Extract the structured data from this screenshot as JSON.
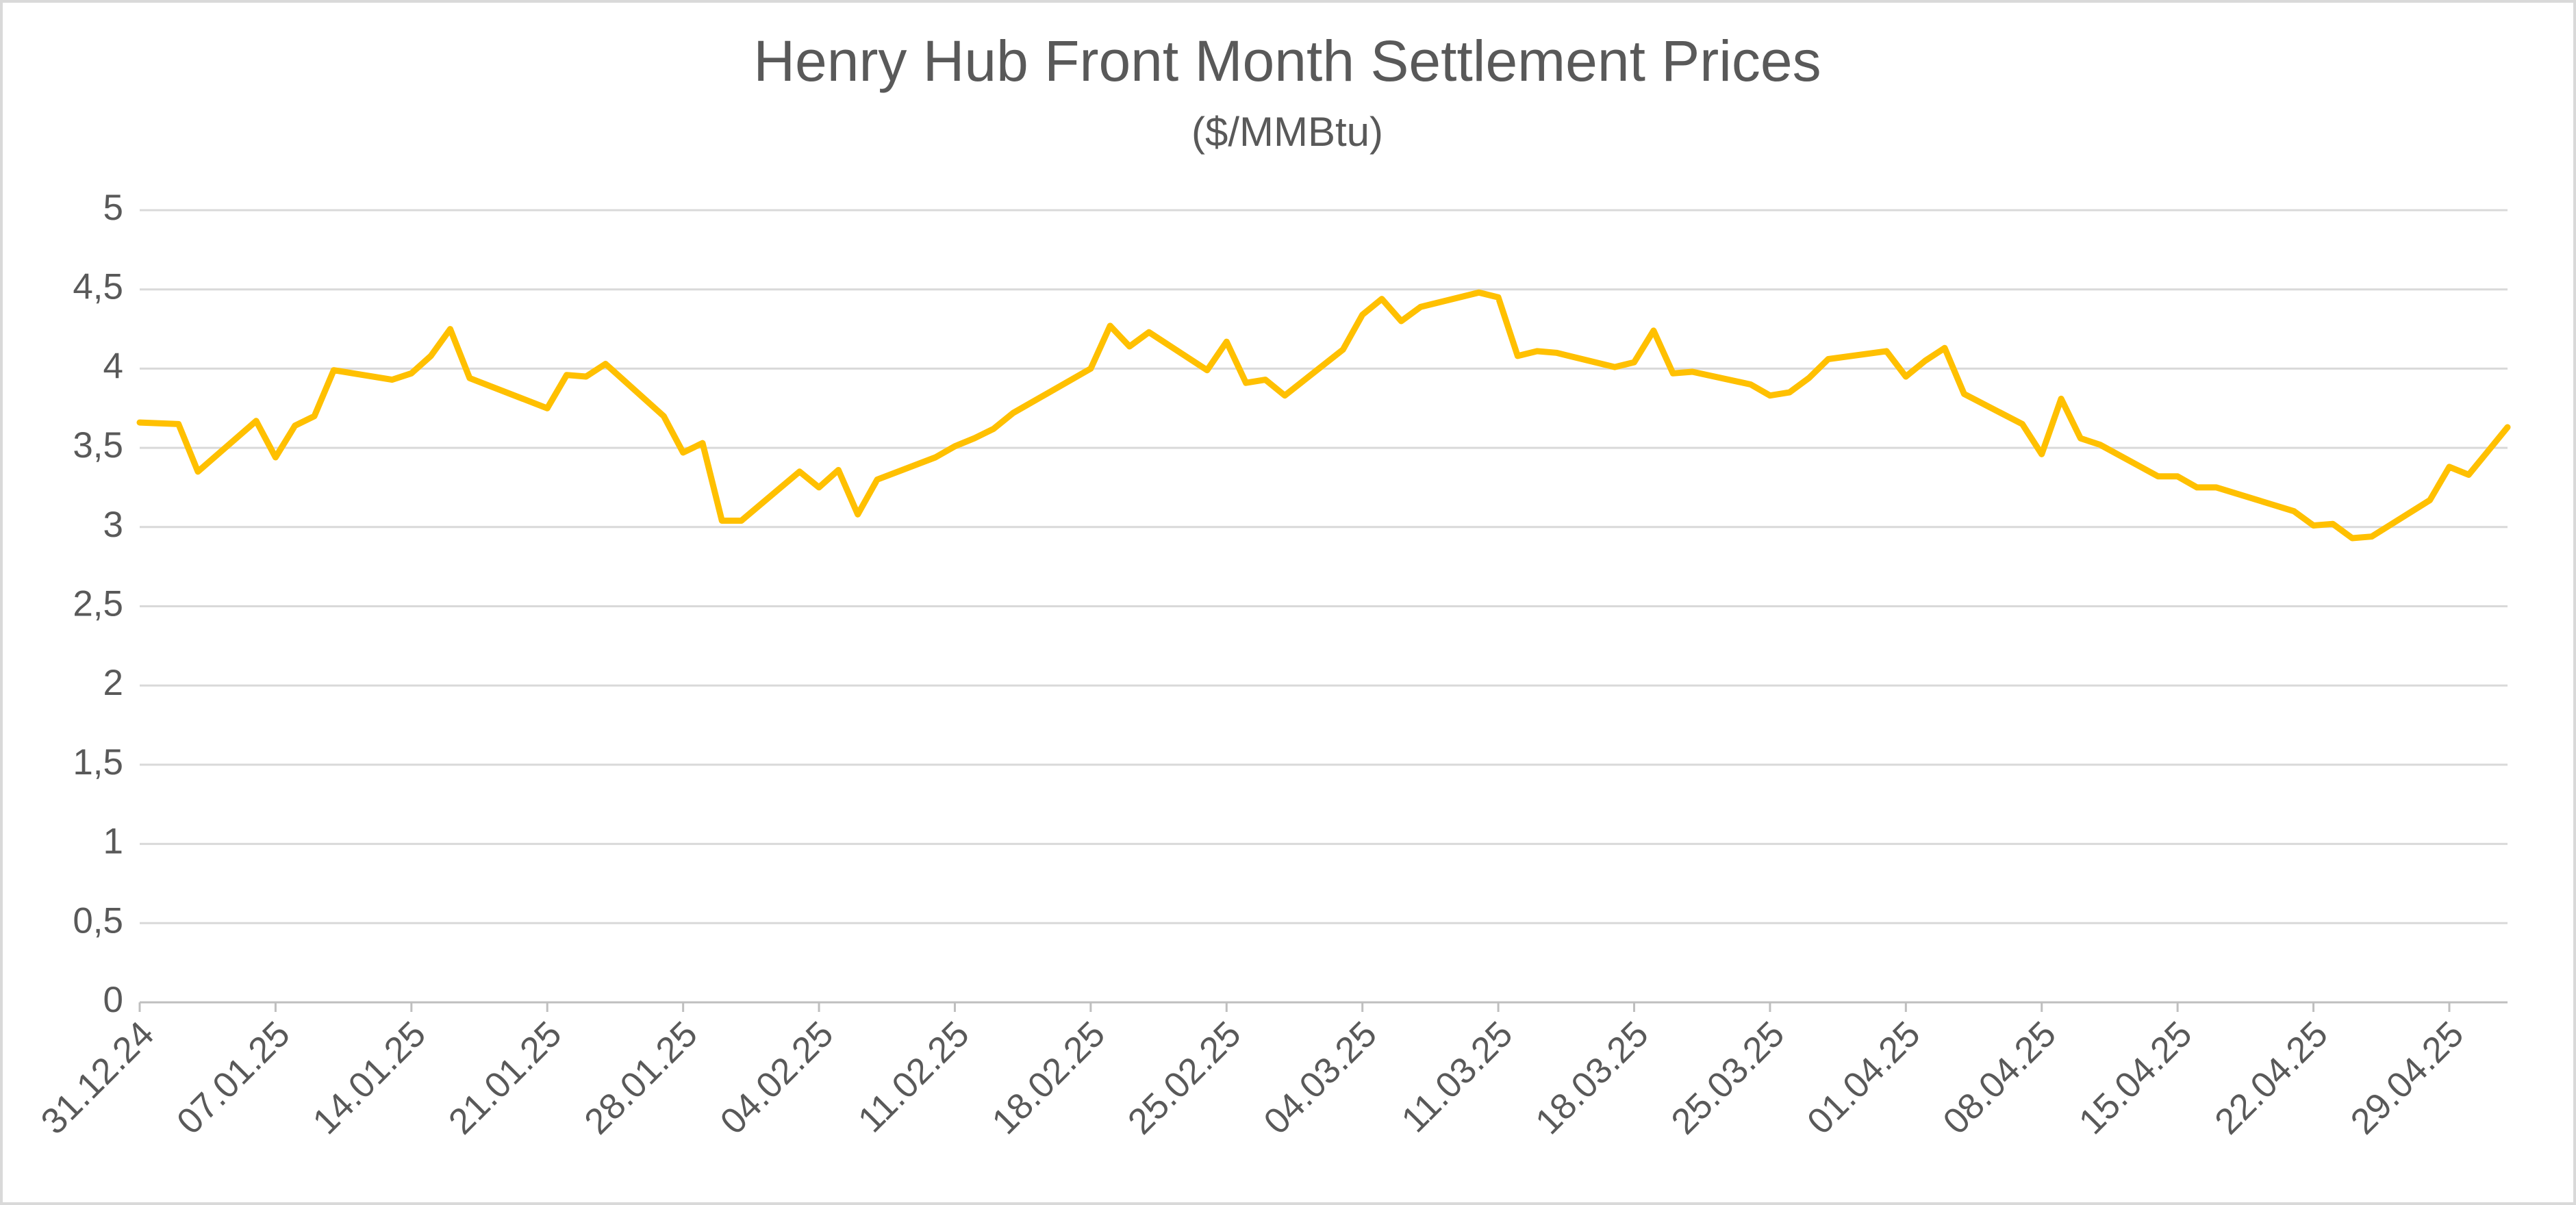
{
  "chart_data": {
    "type": "line",
    "title": "Henry Hub Front Month Settlement Prices",
    "subtitle": "($/MMBtu)",
    "x": [
      "31.12.24",
      "02.01.25",
      "03.01.25",
      "06.01.25",
      "07.01.25",
      "08.01.25",
      "09.01.25",
      "10.01.25",
      "13.01.25",
      "14.01.25",
      "15.01.25",
      "16.01.25",
      "17.01.25",
      "21.01.25",
      "22.01.25",
      "23.01.25",
      "24.01.25",
      "27.01.25",
      "28.01.25",
      "29.01.25",
      "30.01.25",
      "31.01.25",
      "03.02.25",
      "04.02.25",
      "05.02.25",
      "06.02.25",
      "07.02.25",
      "10.02.25",
      "11.02.25",
      "12.02.25",
      "13.02.25",
      "14.02.25",
      "18.02.25",
      "19.02.25",
      "20.02.25",
      "21.02.25",
      "24.02.25",
      "25.02.25",
      "26.02.25",
      "27.02.25",
      "28.02.25",
      "03.03.25",
      "04.03.25",
      "05.03.25",
      "06.03.25",
      "07.03.25",
      "10.03.25",
      "11.03.25",
      "12.03.25",
      "13.03.25",
      "14.03.25",
      "17.03.25",
      "18.03.25",
      "19.03.25",
      "20.03.25",
      "21.03.25",
      "24.03.25",
      "25.03.25",
      "26.03.25",
      "27.03.25",
      "28.03.25",
      "31.03.25",
      "01.04.25",
      "02.04.25",
      "03.04.25",
      "04.04.25",
      "07.04.25",
      "08.04.25",
      "09.04.25",
      "10.04.25",
      "11.04.25",
      "14.04.25",
      "15.04.25",
      "16.04.25",
      "17.04.25",
      "21.04.25",
      "22.04.25",
      "23.04.25",
      "24.04.25",
      "25.04.25",
      "28.04.25",
      "29.04.25",
      "30.04.25",
      "01.05.25",
      "02.05.25"
    ],
    "values": [
      3.66,
      3.65,
      3.35,
      3.67,
      3.44,
      3.64,
      3.7,
      3.99,
      3.93,
      3.97,
      4.08,
      4.25,
      3.94,
      3.75,
      3.96,
      3.95,
      4.03,
      3.7,
      3.47,
      3.53,
      3.04,
      3.04,
      3.35,
      3.25,
      3.36,
      3.08,
      3.3,
      3.44,
      3.51,
      3.56,
      3.62,
      3.72,
      4.0,
      4.27,
      4.14,
      4.23,
      3.99,
      4.17,
      3.91,
      3.93,
      3.83,
      4.12,
      4.34,
      4.44,
      4.3,
      4.39,
      4.48,
      4.45,
      4.08,
      4.11,
      4.1,
      4.01,
      4.04,
      4.24,
      3.97,
      3.98,
      3.9,
      3.83,
      3.85,
      3.94,
      4.06,
      4.11,
      3.95,
      4.05,
      4.13,
      3.84,
      3.65,
      3.46,
      3.81,
      3.56,
      3.52,
      3.32,
      3.32,
      3.25,
      3.25,
      3.1,
      3.01,
      3.02,
      2.93,
      2.94,
      3.17,
      3.38,
      3.33,
      3.48,
      3.63
    ],
    "color": "#ffc000",
    "xlim": [
      "31.12.24",
      "02.05.25"
    ],
    "xticks": [
      "31.12.24",
      "07.01.25",
      "14.01.25",
      "21.01.25",
      "28.01.25",
      "04.02.25",
      "11.02.25",
      "18.02.25",
      "25.02.25",
      "04.03.25",
      "11.03.25",
      "18.03.25",
      "25.03.25",
      "01.04.25",
      "08.04.25",
      "15.04.25",
      "22.04.25",
      "29.04.25"
    ],
    "ylim": [
      0,
      5
    ],
    "yticks": [
      0,
      {
        "value": 0.5,
        "label": "0,5"
      },
      1,
      {
        "value": 1.5,
        "label": "1,5"
      },
      2,
      {
        "value": 2.5,
        "label": "2,5"
      },
      3,
      {
        "value": 3.5,
        "label": "3,5"
      },
      4,
      {
        "value": 4.5,
        "label": "4,5"
      },
      5
    ],
    "grid": true
  }
}
